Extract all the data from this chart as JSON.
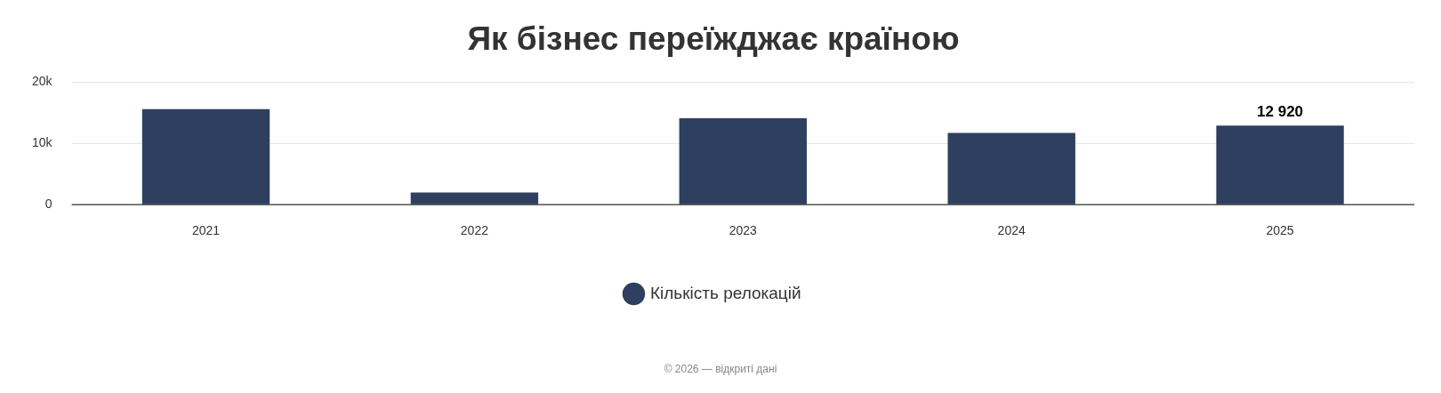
{
  "chart_data": {
    "type": "bar",
    "title": "Як бізнес переїжджає країною",
    "categories": [
      "2021",
      "2022",
      "2023",
      "2024",
      "2025"
    ],
    "series": [
      {
        "name": "Кількість релокацій",
        "color": "#2e3f60",
        "values": [
          15600,
          2000,
          14100,
          11700,
          12920
        ],
        "value_labels": [
          null,
          null,
          null,
          null,
          "12 920"
        ]
      }
    ],
    "ylim": [
      0,
      20000
    ],
    "yticks": [
      {
        "value": 0,
        "label": "0"
      },
      {
        "value": 10000,
        "label": "10k"
      },
      {
        "value": 20000,
        "label": "20k"
      }
    ],
    "grid": "y",
    "legend": "bottom",
    "annotations": [
      "© 2026 — відкриті дані"
    ]
  }
}
